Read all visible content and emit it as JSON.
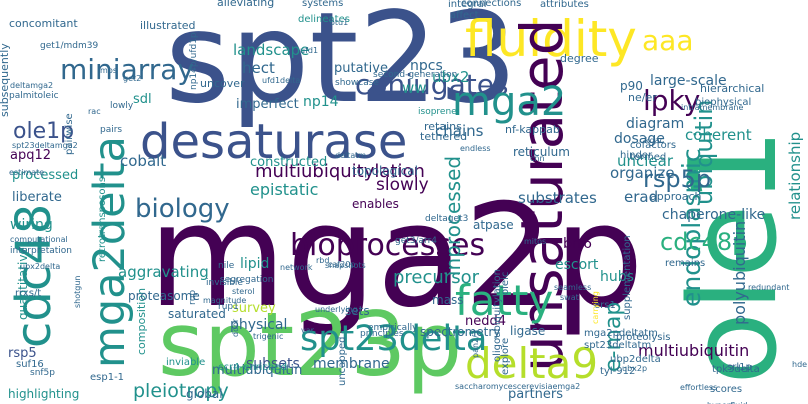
{
  "title_hidden": "",
  "palette": {
    "p1": "#440154",
    "p2": "#3b528b",
    "p3": "#31688e",
    "p4": "#21918c",
    "p5": "#2ab07f",
    "p6": "#5ec962",
    "p7": "#b5de2b",
    "p8": "#fde725",
    "background": "#ffffff"
  },
  "words": [
    {
      "text": "mga2p"
    },
    {
      "text": "spt23"
    },
    {
      "text": "ole1"
    },
    {
      "text": "spt23p"
    },
    {
      "text": "desaturase"
    },
    {
      "text": "fluidity"
    },
    {
      "text": "unsaturated"
    },
    {
      "text": "mga2delta"
    },
    {
      "text": "cdc48"
    },
    {
      "text": "bioprocesses"
    },
    {
      "text": "fatty"
    },
    {
      "text": "delta9"
    },
    {
      "text": "spt23delta"
    },
    {
      "text": "endoplasmic"
    },
    {
      "text": "ubiquitin"
    },
    {
      "text": "conjugates"
    },
    {
      "text": "miniarray"
    },
    {
      "text": "biology"
    },
    {
      "text": "mga2"
    },
    {
      "text": "cdc48p"
    },
    {
      "text": "lpky"
    },
    {
      "text": "aaa"
    },
    {
      "text": "rsp5p"
    },
    {
      "text": "ole1p"
    },
    {
      "text": "e-map"
    },
    {
      "text": "multiubiquitylation"
    },
    {
      "text": "inprocessed"
    },
    {
      "text": "polyubiquitin"
    },
    {
      "text": "relationship"
    },
    {
      "text": "pleiotropy"
    },
    {
      "text": "multiubiquitin"
    },
    {
      "text": "aggravating"
    },
    {
      "text": "precursor"
    },
    {
      "text": "slowly"
    },
    {
      "text": "epistatic"
    },
    {
      "text": "survey"
    },
    {
      "text": "lipid"
    },
    {
      "text": "constructed"
    },
    {
      "text": "cobalt"
    },
    {
      "text": "chains"
    },
    {
      "text": "coherent"
    },
    {
      "text": "large-scale"
    },
    {
      "text": "landscape"
    },
    {
      "text": "hect"
    },
    {
      "text": "putative"
    },
    {
      "text": "npcs"
    },
    {
      "text": "ubx2"
    },
    {
      "text": "np14"
    },
    {
      "text": "imperfect"
    },
    {
      "text": "diagram"
    },
    {
      "text": "dosage"
    },
    {
      "text": "reticulum"
    },
    {
      "text": "substrates"
    },
    {
      "text": "erad"
    },
    {
      "text": "chaperone-like"
    },
    {
      "text": "brr6"
    },
    {
      "text": "escort"
    },
    {
      "text": "hubs"
    },
    {
      "text": "organize"
    },
    {
      "text": "unclear"
    },
    {
      "text": "apq12"
    },
    {
      "text": "processed"
    },
    {
      "text": "liberate"
    },
    {
      "text": "wiring"
    },
    {
      "text": "quantitative"
    },
    {
      "text": "rsp5"
    },
    {
      "text": "subsets"
    },
    {
      "text": "membrane"
    },
    {
      "text": "nedd4"
    },
    {
      "text": "ligase"
    },
    {
      "text": "physical"
    },
    {
      "text": "sets"
    },
    {
      "text": "mass"
    },
    {
      "text": "spectrometry"
    },
    {
      "text": "saturated"
    },
    {
      "text": "composition"
    },
    {
      "text": "proteasome"
    },
    {
      "text": "retrotransposons"
    },
    {
      "text": "topological"
    },
    {
      "text": "enables"
    },
    {
      "text": "atpase"
    },
    {
      "text": "ww"
    },
    {
      "text": "sdl"
    },
    {
      "text": "pairwise"
    },
    {
      "text": "tethered"
    },
    {
      "text": "retains"
    },
    {
      "text": "nf-kappab"
    },
    {
      "text": "cofactors"
    },
    {
      "text": "termed"
    },
    {
      "text": "hinder"
    },
    {
      "text": "biophysical"
    },
    {
      "text": "hierarchical"
    },
    {
      "text": "approach"
    },
    {
      "text": "remains"
    },
    {
      "text": "supplementation"
    },
    {
      "text": "explore"
    },
    {
      "text": "proteolysis"
    },
    {
      "text": "oleic"
    },
    {
      "text": "p90"
    },
    {
      "text": "ne/er"
    },
    {
      "text": "degree"
    },
    {
      "text": "alleviating"
    },
    {
      "text": "illustrated"
    },
    {
      "text": "concomitant"
    },
    {
      "text": "subsequently"
    },
    {
      "text": "integral"
    },
    {
      "text": "affect"
    },
    {
      "text": "connections"
    },
    {
      "text": "attributes"
    },
    {
      "text": "systems"
    },
    {
      "text": "delineates"
    },
    {
      "text": "uncover"
    },
    {
      "text": "showcase"
    },
    {
      "text": "second-generation"
    },
    {
      "text": "isoprene"
    },
    {
      "text": "highlighting"
    },
    {
      "text": "global"
    },
    {
      "text": "partners"
    },
    {
      "text": "multiubiquitin"
    },
    {
      "text": "inviable"
    },
    {
      "text": "ccr4-enriched"
    },
    {
      "text": "esp1-1"
    },
    {
      "text": "mga2pdeltatm"
    },
    {
      "text": "spt23deltatm"
    },
    {
      "text": "ubp2delta"
    },
    {
      "text": "tyl-912"
    },
    {
      "text": "ubx2p"
    },
    {
      "text": "scores"
    },
    {
      "text": "srl1p"
    },
    {
      "text": "tpk3delta"
    },
    {
      "text": "ers1"
    },
    {
      "text": "carrying"
    },
    {
      "text": "seamless"
    },
    {
      "text": "swat"
    },
    {
      "text": "mitos"
    },
    {
      "text": "get3/arr4"
    },
    {
      "text": "deltaget3"
    },
    {
      "text": "rbd"
    },
    {
      "text": "caf20p"
    },
    {
      "text": "network"
    },
    {
      "text": "segregation"
    },
    {
      "text": "nile"
    },
    {
      "text": "rup"
    },
    {
      "text": "rup1"
    },
    {
      "text": "magnitude"
    },
    {
      "text": "door"
    },
    {
      "text": "trigenic"
    },
    {
      "text": "var"
    },
    {
      "text": "principles"
    },
    {
      "text": "empirically"
    },
    {
      "text": "underlying"
    },
    {
      "text": "pan2/3"
    },
    {
      "text": "snapshots"
    },
    {
      "text": "uncapped"
    },
    {
      "text": "oligoubiquitylation"
    },
    {
      "text": "shotgun"
    },
    {
      "text": "suf16"
    },
    {
      "text": "snf5p"
    },
    {
      "text": "rrxs/t"
    },
    {
      "text": "ubx2delta"
    },
    {
      "text": "interpretation"
    },
    {
      "text": "computational"
    },
    {
      "text": "palmitoleic"
    },
    {
      "text": "deltamga2"
    },
    {
      "text": "get1/mdm39"
    },
    {
      "text": "get2"
    },
    {
      "text": "lowly"
    },
    {
      "text": "mps"
    },
    {
      "text": "rac"
    },
    {
      "text": "otu1"
    },
    {
      "text": "ufd1"
    },
    {
      "text": "endless"
    },
    {
      "text": "deltatm"
    },
    {
      "text": "cnn"
    },
    {
      "text": "kdac"
    },
    {
      "text": "redundant"
    },
    {
      "text": "intramembrane"
    },
    {
      "text": "hyperfluid"
    },
    {
      "text": "effortless"
    },
    {
      "text": "hde1"
    },
    {
      "text": "saccharomycescerevisiaemga2"
    },
    {
      "text": "sterol"
    },
    {
      "text": "invisible"
    },
    {
      "text": "np14p/ufd1p"
    },
    {
      "text": "ufd1delta"
    },
    {
      "text": "pairs"
    },
    {
      "text": "estimate"
    },
    {
      "text": "spt23deltamga2"
    }
  ]
}
